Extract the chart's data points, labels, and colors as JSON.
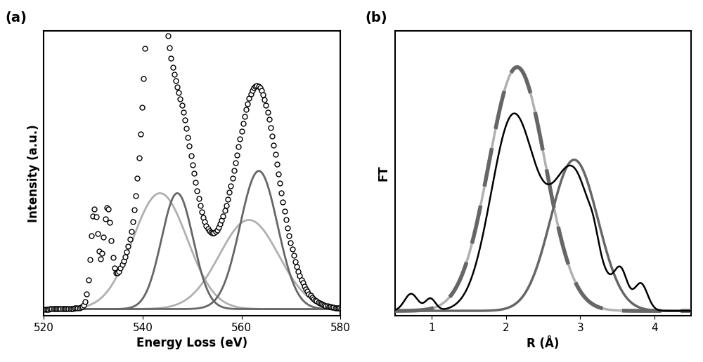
{
  "panel_a": {
    "xlabel": "Energy Loss (eV)",
    "ylabel": "Intensity (a.u.)",
    "label": "(a)",
    "xlim": [
      520,
      580
    ],
    "x_ticks": [
      520,
      540,
      560,
      580
    ]
  },
  "panel_b": {
    "xlabel": "R (Å)",
    "ylabel": "FT",
    "label": "(b)",
    "xlim": [
      0.5,
      4.5
    ],
    "x_ticks": [
      1,
      2,
      3,
      4
    ]
  },
  "colors": {
    "open_circles": "#000000",
    "dark_dots": "#555555",
    "light_gray": "#aaaaaa",
    "dark_gray": "#666666",
    "black_line": "#000000"
  }
}
